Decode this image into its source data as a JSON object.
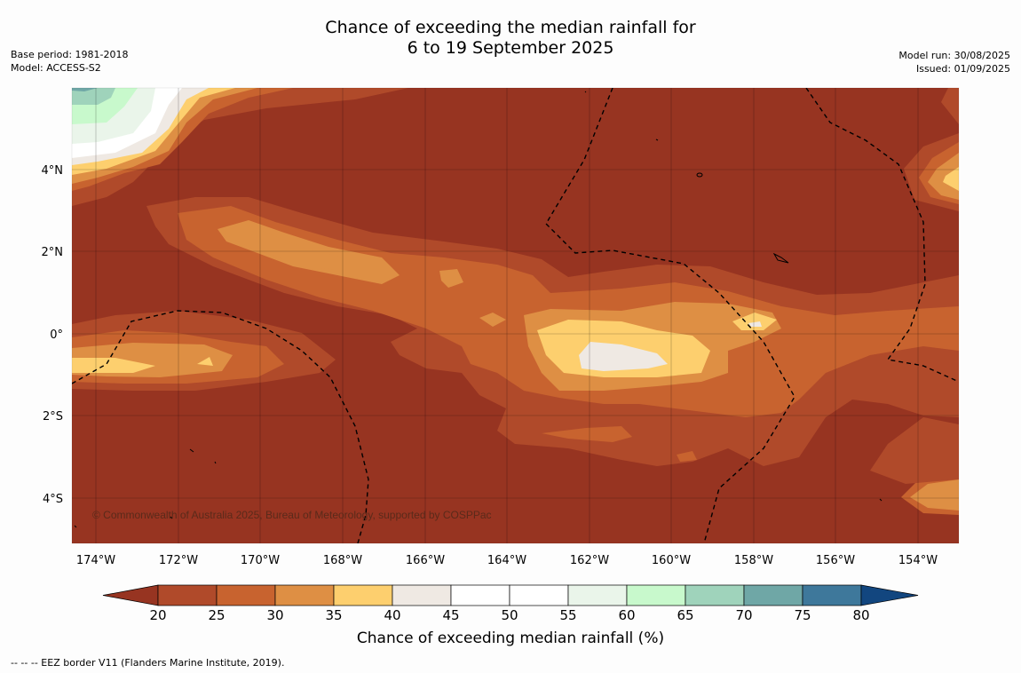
{
  "title": {
    "line1": "Chance of exceeding the median rainfall for",
    "line2": "6 to 19 September 2025"
  },
  "meta_left": {
    "base_period": "Base period: 1981-2018",
    "model": "Model: ACCESS-S2"
  },
  "meta_right": {
    "model_run": "Model run: 30/08/2025",
    "issued": "Issued: 01/09/2025"
  },
  "map": {
    "lon_ticks": [
      "174°W",
      "172°W",
      "170°W",
      "168°W",
      "166°W",
      "164°W",
      "162°W",
      "160°W",
      "158°W",
      "156°W",
      "154°W"
    ],
    "lat_ticks": [
      "4°N",
      "2°N",
      "0°",
      "2°S",
      "4°S"
    ],
    "copyright": "© Commonwealth of Australia 2025, Bureau of Meteorology, supported by COSPPac"
  },
  "colorbar": {
    "ticks": [
      "20",
      "25",
      "30",
      "35",
      "40",
      "45",
      "50",
      "55",
      "60",
      "65",
      "70",
      "75",
      "80"
    ],
    "colors": [
      "#b04a2a",
      "#c8632f",
      "#de8f44",
      "#fdcf6e",
      "#efe9e3",
      "#ffffff",
      "#ffffff",
      "#eaf5ea",
      "#c8f9cc",
      "#9fd3bb",
      "#6fa7a6",
      "#3e789b"
    ],
    "under_color": "#973421",
    "over_color": "#12467f",
    "label": "Chance of exceeding median rainfall (%)"
  },
  "footnote": "--  --  -- EEZ border V11 (Flanders Marine Institute, 2019)."
}
